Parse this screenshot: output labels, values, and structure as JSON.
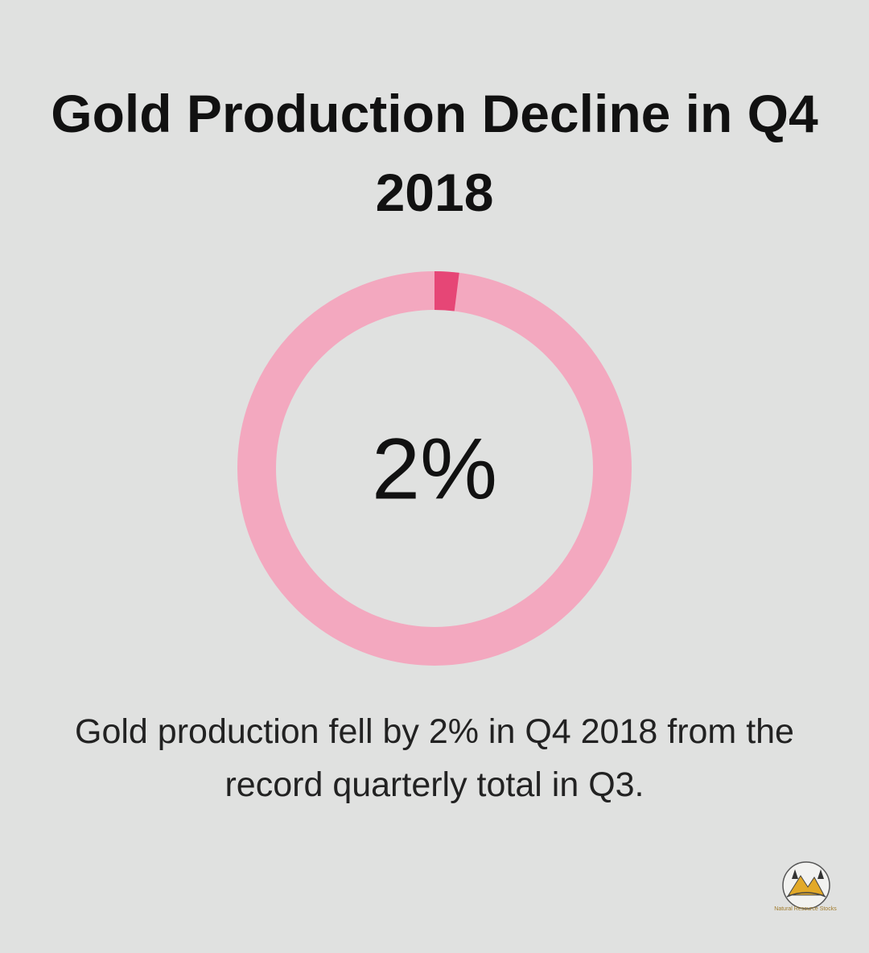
{
  "chart_data": {
    "type": "donut",
    "title": "Gold Production Decline in Q4 2018",
    "values": [
      2
    ],
    "value_labels": [
      "2%"
    ],
    "color": "#e64676",
    "track_color": "#f3a8bf",
    "caption": "Gold production fell by 2% in Q4 2018 from the record quarterly total in Q3.",
    "logo": "Natural Resource Stocks"
  }
}
